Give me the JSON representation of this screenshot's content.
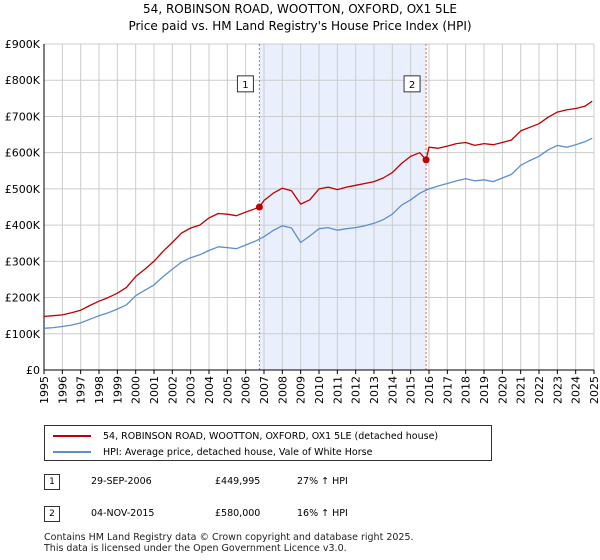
{
  "title_line1": "54, ROBINSON ROAD, WOOTTON, OXFORD, OX1 5LE",
  "title_line2": "Price paid vs. HM Land Registry's House Price Index (HPI)",
  "colors": {
    "property": "#c00000",
    "hpi": "#5b8fd0",
    "shade": "#e9effc",
    "marker_line": "#e06060",
    "grid": "#cccccc"
  },
  "chart_data": {
    "type": "line",
    "xlim": [
      1995,
      2025
    ],
    "ylim": [
      0,
      900000
    ],
    "x_ticks": [
      1995,
      1996,
      1997,
      1998,
      1999,
      2000,
      2001,
      2002,
      2003,
      2004,
      2005,
      2006,
      2007,
      2008,
      2009,
      2010,
      2011,
      2012,
      2013,
      2014,
      2015,
      2016,
      2017,
      2018,
      2019,
      2020,
      2021,
      2022,
      2023,
      2024,
      2025
    ],
    "y_ticks": [
      0,
      100000,
      200000,
      300000,
      400000,
      500000,
      600000,
      700000,
      800000,
      900000
    ],
    "y_tick_labels": [
      "£0",
      "£100K",
      "£200K",
      "£300K",
      "£400K",
      "£500K",
      "£600K",
      "£700K",
      "£800K",
      "£900K"
    ],
    "shaded_range": [
      2006.75,
      2015.84
    ],
    "series": [
      {
        "name": "54, ROBINSON ROAD, WOOTTON, OXFORD, OX1 5LE (detached house)",
        "color": "#c00000",
        "x": [
          1995.0,
          1995.5,
          1996.0,
          1996.5,
          1997.0,
          1997.5,
          1998.0,
          1998.5,
          1999.0,
          1999.5,
          2000.0,
          2000.5,
          2001.0,
          2001.5,
          2002.0,
          2002.5,
          2003.0,
          2003.5,
          2004.0,
          2004.5,
          2005.0,
          2005.5,
          2006.0,
          2006.5,
          2006.75,
          2007.0,
          2007.5,
          2008.0,
          2008.5,
          2009.0,
          2009.5,
          2010.0,
          2010.5,
          2011.0,
          2011.5,
          2012.0,
          2012.5,
          2013.0,
          2013.5,
          2014.0,
          2014.5,
          2015.0,
          2015.5,
          2015.84,
          2016.0,
          2016.5,
          2017.0,
          2017.5,
          2018.0,
          2018.5,
          2019.0,
          2019.5,
          2020.0,
          2020.5,
          2021.0,
          2021.5,
          2022.0,
          2022.5,
          2023.0,
          2023.5,
          2024.0,
          2024.5,
          2024.9
        ],
        "values": [
          148000,
          150000,
          152000,
          158000,
          165000,
          178000,
          190000,
          200000,
          212000,
          228000,
          258000,
          278000,
          300000,
          328000,
          352000,
          378000,
          392000,
          400000,
          420000,
          432000,
          430000,
          426000,
          436000,
          445000,
          449995,
          468000,
          488000,
          502000,
          495000,
          458000,
          470000,
          500000,
          505000,
          498000,
          505000,
          510000,
          515000,
          520000,
          530000,
          545000,
          570000,
          590000,
          600000,
          580000,
          615000,
          612000,
          618000,
          625000,
          628000,
          620000,
          625000,
          622000,
          628000,
          635000,
          660000,
          670000,
          680000,
          698000,
          712000,
          718000,
          722000,
          728000,
          742000
        ]
      },
      {
        "name": "HPI: Average price, detached house, Vale of White Horse",
        "color": "#5b8fd0",
        "x": [
          1995.0,
          1995.5,
          1996.0,
          1996.5,
          1997.0,
          1997.5,
          1998.0,
          1998.5,
          1999.0,
          1999.5,
          2000.0,
          2000.5,
          2001.0,
          2001.5,
          2002.0,
          2002.5,
          2003.0,
          2003.5,
          2004.0,
          2004.5,
          2005.0,
          2005.5,
          2006.0,
          2006.5,
          2007.0,
          2007.5,
          2008.0,
          2008.5,
          2009.0,
          2009.5,
          2010.0,
          2010.5,
          2011.0,
          2011.5,
          2012.0,
          2012.5,
          2013.0,
          2013.5,
          2014.0,
          2014.5,
          2015.0,
          2015.5,
          2016.0,
          2016.5,
          2017.0,
          2017.5,
          2018.0,
          2018.5,
          2019.0,
          2019.5,
          2020.0,
          2020.5,
          2021.0,
          2021.5,
          2022.0,
          2022.5,
          2023.0,
          2023.5,
          2024.0,
          2024.5,
          2024.9
        ],
        "values": [
          115000,
          117000,
          120000,
          124000,
          130000,
          140000,
          150000,
          158000,
          168000,
          180000,
          205000,
          220000,
          235000,
          258000,
          278000,
          298000,
          310000,
          318000,
          330000,
          340000,
          338000,
          335000,
          345000,
          355000,
          368000,
          385000,
          398000,
          392000,
          352000,
          370000,
          390000,
          393000,
          386000,
          390000,
          393000,
          398000,
          405000,
          415000,
          430000,
          455000,
          470000,
          488000,
          500000,
          508000,
          515000,
          522000,
          528000,
          522000,
          525000,
          520000,
          530000,
          540000,
          565000,
          578000,
          590000,
          608000,
          620000,
          615000,
          622000,
          630000,
          640000
        ]
      }
    ],
    "sales": [
      {
        "label": "1",
        "date": "29-SEP-2006",
        "x": 2006.75,
        "price": 449995,
        "price_label": "£449,995",
        "hpi_change": "27% ↑ HPI"
      },
      {
        "label": "2",
        "date": "04-NOV-2015",
        "x": 2015.84,
        "price": 580000,
        "price_label": "£580,000",
        "hpi_change": "16% ↑ HPI"
      }
    ],
    "sale_box_value": 790000
  },
  "legend": {
    "property_label": "54, ROBINSON ROAD, WOOTTON, OXFORD, OX1 5LE (detached house)",
    "hpi_label": "HPI: Average price, detached house, Vale of White Horse"
  },
  "footer_line1": "Contains HM Land Registry data © Crown copyright and database right 2025.",
  "footer_line2": "This data is licensed under the Open Government Licence v3.0."
}
